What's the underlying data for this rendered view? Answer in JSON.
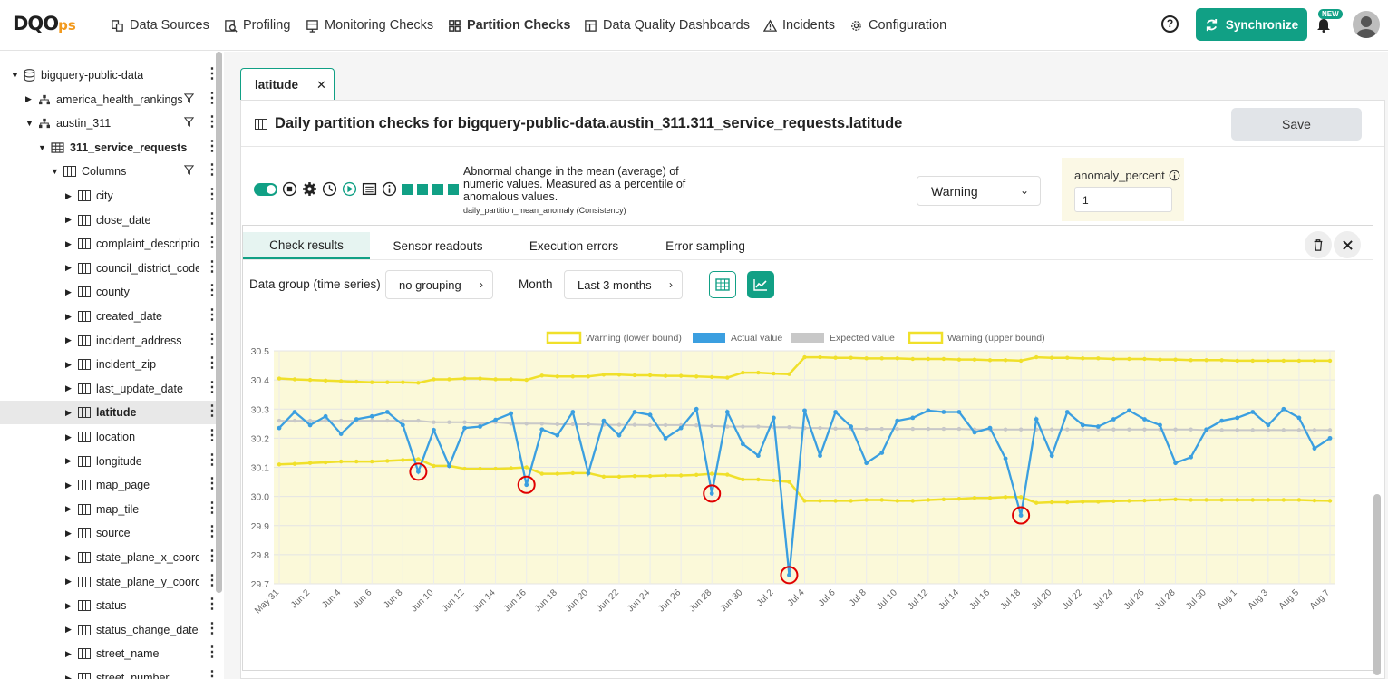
{
  "brand": {
    "logo_main": "DQO",
    "logo_suffix": "ps"
  },
  "nav": [
    {
      "label": "Data Sources",
      "icon": "data-sources-icon"
    },
    {
      "label": "Profiling",
      "icon": "profiling-icon"
    },
    {
      "label": "Monitoring Checks",
      "icon": "monitoring-icon"
    },
    {
      "label": "Partition Checks",
      "icon": "partition-icon"
    },
    {
      "label": "Data Quality Dashboards",
      "icon": "dashboard-icon"
    },
    {
      "label": "Incidents",
      "icon": "warning-triangle-icon"
    },
    {
      "label": "Configuration",
      "icon": "gear-icon"
    }
  ],
  "header": {
    "help": "?",
    "sync_label": "Synchronize",
    "new_badge": "NEW"
  },
  "tree": [
    {
      "label": "bigquery-public-data",
      "level": 0,
      "icon": "database-icon",
      "expanded": true,
      "filter": false
    },
    {
      "label": "america_health_rankings",
      "level": 1,
      "icon": "schema-icon",
      "expanded": false,
      "filter": true
    },
    {
      "label": "austin_311",
      "level": 1,
      "icon": "schema-icon",
      "expanded": true,
      "filter": true
    },
    {
      "label": "311_service_requests",
      "level": 2,
      "icon": "table-icon",
      "expanded": true,
      "filter": false,
      "bold": true
    },
    {
      "label": "Columns",
      "level": 3,
      "icon": "column-icon",
      "expanded": true,
      "filter": true
    },
    {
      "label": "city",
      "level": 4,
      "icon": "column-icon"
    },
    {
      "label": "close_date",
      "level": 4,
      "icon": "column-icon"
    },
    {
      "label": "complaint_description",
      "level": 4,
      "icon": "column-icon"
    },
    {
      "label": "council_district_code",
      "level": 4,
      "icon": "column-icon"
    },
    {
      "label": "county",
      "level": 4,
      "icon": "column-icon"
    },
    {
      "label": "created_date",
      "level": 4,
      "icon": "column-icon"
    },
    {
      "label": "incident_address",
      "level": 4,
      "icon": "column-icon"
    },
    {
      "label": "incident_zip",
      "level": 4,
      "icon": "column-icon"
    },
    {
      "label": "last_update_date",
      "level": 4,
      "icon": "column-icon"
    },
    {
      "label": "latitude",
      "level": 4,
      "icon": "column-icon",
      "selected": true,
      "bold": true
    },
    {
      "label": "location",
      "level": 4,
      "icon": "column-icon"
    },
    {
      "label": "longitude",
      "level": 4,
      "icon": "column-icon"
    },
    {
      "label": "map_page",
      "level": 4,
      "icon": "column-icon"
    },
    {
      "label": "map_tile",
      "level": 4,
      "icon": "column-icon"
    },
    {
      "label": "source",
      "level": 4,
      "icon": "column-icon"
    },
    {
      "label": "state_plane_x_coordir",
      "level": 4,
      "icon": "column-icon"
    },
    {
      "label": "state_plane_y_coordir",
      "level": 4,
      "icon": "column-icon"
    },
    {
      "label": "status",
      "level": 4,
      "icon": "column-icon"
    },
    {
      "label": "status_change_date",
      "level": 4,
      "icon": "column-icon"
    },
    {
      "label": "street_name",
      "level": 4,
      "icon": "column-icon"
    },
    {
      "label": "street_number",
      "level": 4,
      "icon": "column-icon"
    }
  ],
  "tab": {
    "label": "latitude",
    "close": "✕"
  },
  "page": {
    "title": "Daily partition checks for bigquery-public-data.austin_311.311_service_requests.latitude",
    "save_label": "Save"
  },
  "check": {
    "description": "Abnormal change in the mean (average) of numeric values. Measured as a percentile of anomalous values.",
    "name": "daily_partition_mean_anomaly (Consistency)",
    "severity": "Warning",
    "param_label": "anomaly_percent",
    "param_value": "1"
  },
  "inner_tabs": [
    "Check results",
    "Sensor readouts",
    "Execution errors",
    "Error sampling"
  ],
  "filters": {
    "group_label": "Data group (time series)",
    "group_value": "no grouping",
    "month_label": "Month",
    "month_value": "Last 3 months"
  },
  "chart_data": {
    "type": "line",
    "legend": [
      "Warning (lower bound)",
      "Actual value",
      "Expected value",
      "Warning (upper bound)"
    ],
    "legend_position": "top",
    "colors": {
      "warning": "#f0e02a",
      "actual": "#3b9fe0",
      "expected": "#c8c8c8",
      "band": "#fbf9d9",
      "anomaly": "#e00000"
    },
    "ylim": [
      29.7,
      30.5
    ],
    "yticks": [
      "30.5",
      "30.4",
      "30.3",
      "30.2",
      "30.1",
      "30.0",
      "29.9",
      "29.8",
      "29.7"
    ],
    "xticks": [
      "May 31",
      "Jun 2",
      "Jun 4",
      "Jun 6",
      "Jun 8",
      "Jun 10",
      "Jun 12",
      "Jun 14",
      "Jun 16",
      "Jun 18",
      "Jun 20",
      "Jun 22",
      "Jun 24",
      "Jun 26",
      "Jun 28",
      "Jun 30",
      "Jul 2",
      "Jul 4",
      "Jul 6",
      "Jul 8",
      "Jul 10",
      "Jul 12",
      "Jul 14",
      "Jul 16",
      "Jul 18",
      "Jul 20",
      "Jul 22",
      "Jul 24",
      "Jul 26",
      "Jul 28",
      "Jul 30",
      "Aug 1",
      "Aug 3",
      "Aug 5",
      "Aug 7"
    ],
    "actual": [
      30.235,
      30.29,
      30.245,
      30.275,
      30.215,
      30.265,
      30.275,
      30.29,
      30.245,
      30.085,
      30.228,
      30.105,
      30.235,
      30.24,
      30.263,
      30.285,
      30.04,
      30.23,
      30.21,
      30.29,
      30.08,
      30.26,
      30.21,
      30.29,
      30.28,
      30.2,
      30.235,
      30.3,
      30.01,
      30.29,
      30.18,
      30.14,
      30.27,
      29.73,
      30.295,
      30.14,
      30.29,
      30.24,
      30.115,
      30.15,
      30.26,
      30.27,
      30.295,
      30.29,
      30.29,
      30.22,
      30.235,
      30.13,
      29.935,
      30.265,
      30.14,
      30.29,
      30.245,
      30.24,
      30.265,
      30.295,
      30.265,
      30.245,
      30.115,
      30.135,
      30.23,
      30.26,
      30.27,
      30.29,
      30.245,
      30.3,
      30.27,
      30.165,
      30.2
    ],
    "expected": [
      30.26,
      30.26,
      30.26,
      30.26,
      30.26,
      30.26,
      30.26,
      30.26,
      30.26,
      30.26,
      30.255,
      30.255,
      30.255,
      30.25,
      30.255,
      30.25,
      30.25,
      30.25,
      30.248,
      30.248,
      30.248,
      30.246,
      30.246,
      30.246,
      30.245,
      30.245,
      30.245,
      30.244,
      30.242,
      30.24,
      30.24,
      30.24,
      30.238,
      30.238,
      30.235,
      30.235,
      30.233,
      30.233,
      30.232,
      30.232,
      30.232,
      30.232,
      30.232,
      30.232,
      30.232,
      30.23,
      30.23,
      30.23,
      30.23,
      30.23,
      30.23,
      30.23,
      30.23,
      30.23,
      30.23,
      30.23,
      30.23,
      30.23,
      30.23,
      30.23,
      30.228,
      30.228,
      30.228,
      30.228,
      30.228,
      30.228,
      30.228,
      30.228,
      30.228
    ],
    "lower": [
      30.11,
      30.112,
      30.115,
      30.117,
      30.12,
      30.12,
      30.12,
      30.122,
      30.125,
      30.128,
      30.105,
      30.105,
      30.095,
      30.095,
      30.095,
      30.097,
      30.1,
      30.078,
      30.078,
      30.08,
      30.08,
      30.068,
      30.068,
      30.07,
      30.07,
      30.072,
      30.072,
      30.074,
      30.078,
      30.075,
      30.058,
      30.058,
      30.055,
      30.05,
      29.985,
      29.985,
      29.985,
      29.985,
      29.988,
      29.988,
      29.985,
      29.985,
      29.988,
      29.99,
      29.992,
      29.995,
      29.995,
      29.998,
      29.998,
      29.978,
      29.98,
      29.98,
      29.982,
      29.982,
      29.984,
      29.985,
      29.986,
      29.988,
      29.99,
      29.988,
      29.988,
      29.988,
      29.988,
      29.988,
      29.988,
      29.988,
      29.988,
      29.986,
      29.985
    ],
    "upper": [
      30.405,
      30.402,
      30.4,
      30.398,
      30.396,
      30.394,
      30.392,
      30.392,
      30.392,
      30.39,
      30.402,
      30.402,
      30.405,
      30.405,
      30.402,
      30.402,
      30.4,
      30.415,
      30.412,
      30.412,
      30.412,
      30.418,
      30.418,
      30.416,
      30.416,
      30.414,
      30.414,
      30.412,
      30.41,
      30.408,
      30.425,
      30.425,
      30.422,
      30.42,
      30.478,
      30.478,
      30.476,
      30.476,
      30.474,
      30.474,
      30.474,
      30.472,
      30.472,
      30.472,
      30.47,
      30.47,
      30.468,
      30.468,
      30.466,
      30.478,
      30.476,
      30.476,
      30.474,
      30.474,
      30.472,
      30.472,
      30.472,
      30.47,
      30.47,
      30.468,
      30.468,
      30.468,
      30.466,
      30.466,
      30.466,
      30.466,
      30.466,
      30.466,
      30.466
    ],
    "anomalies": [
      9,
      16,
      28,
      33,
      48
    ]
  }
}
